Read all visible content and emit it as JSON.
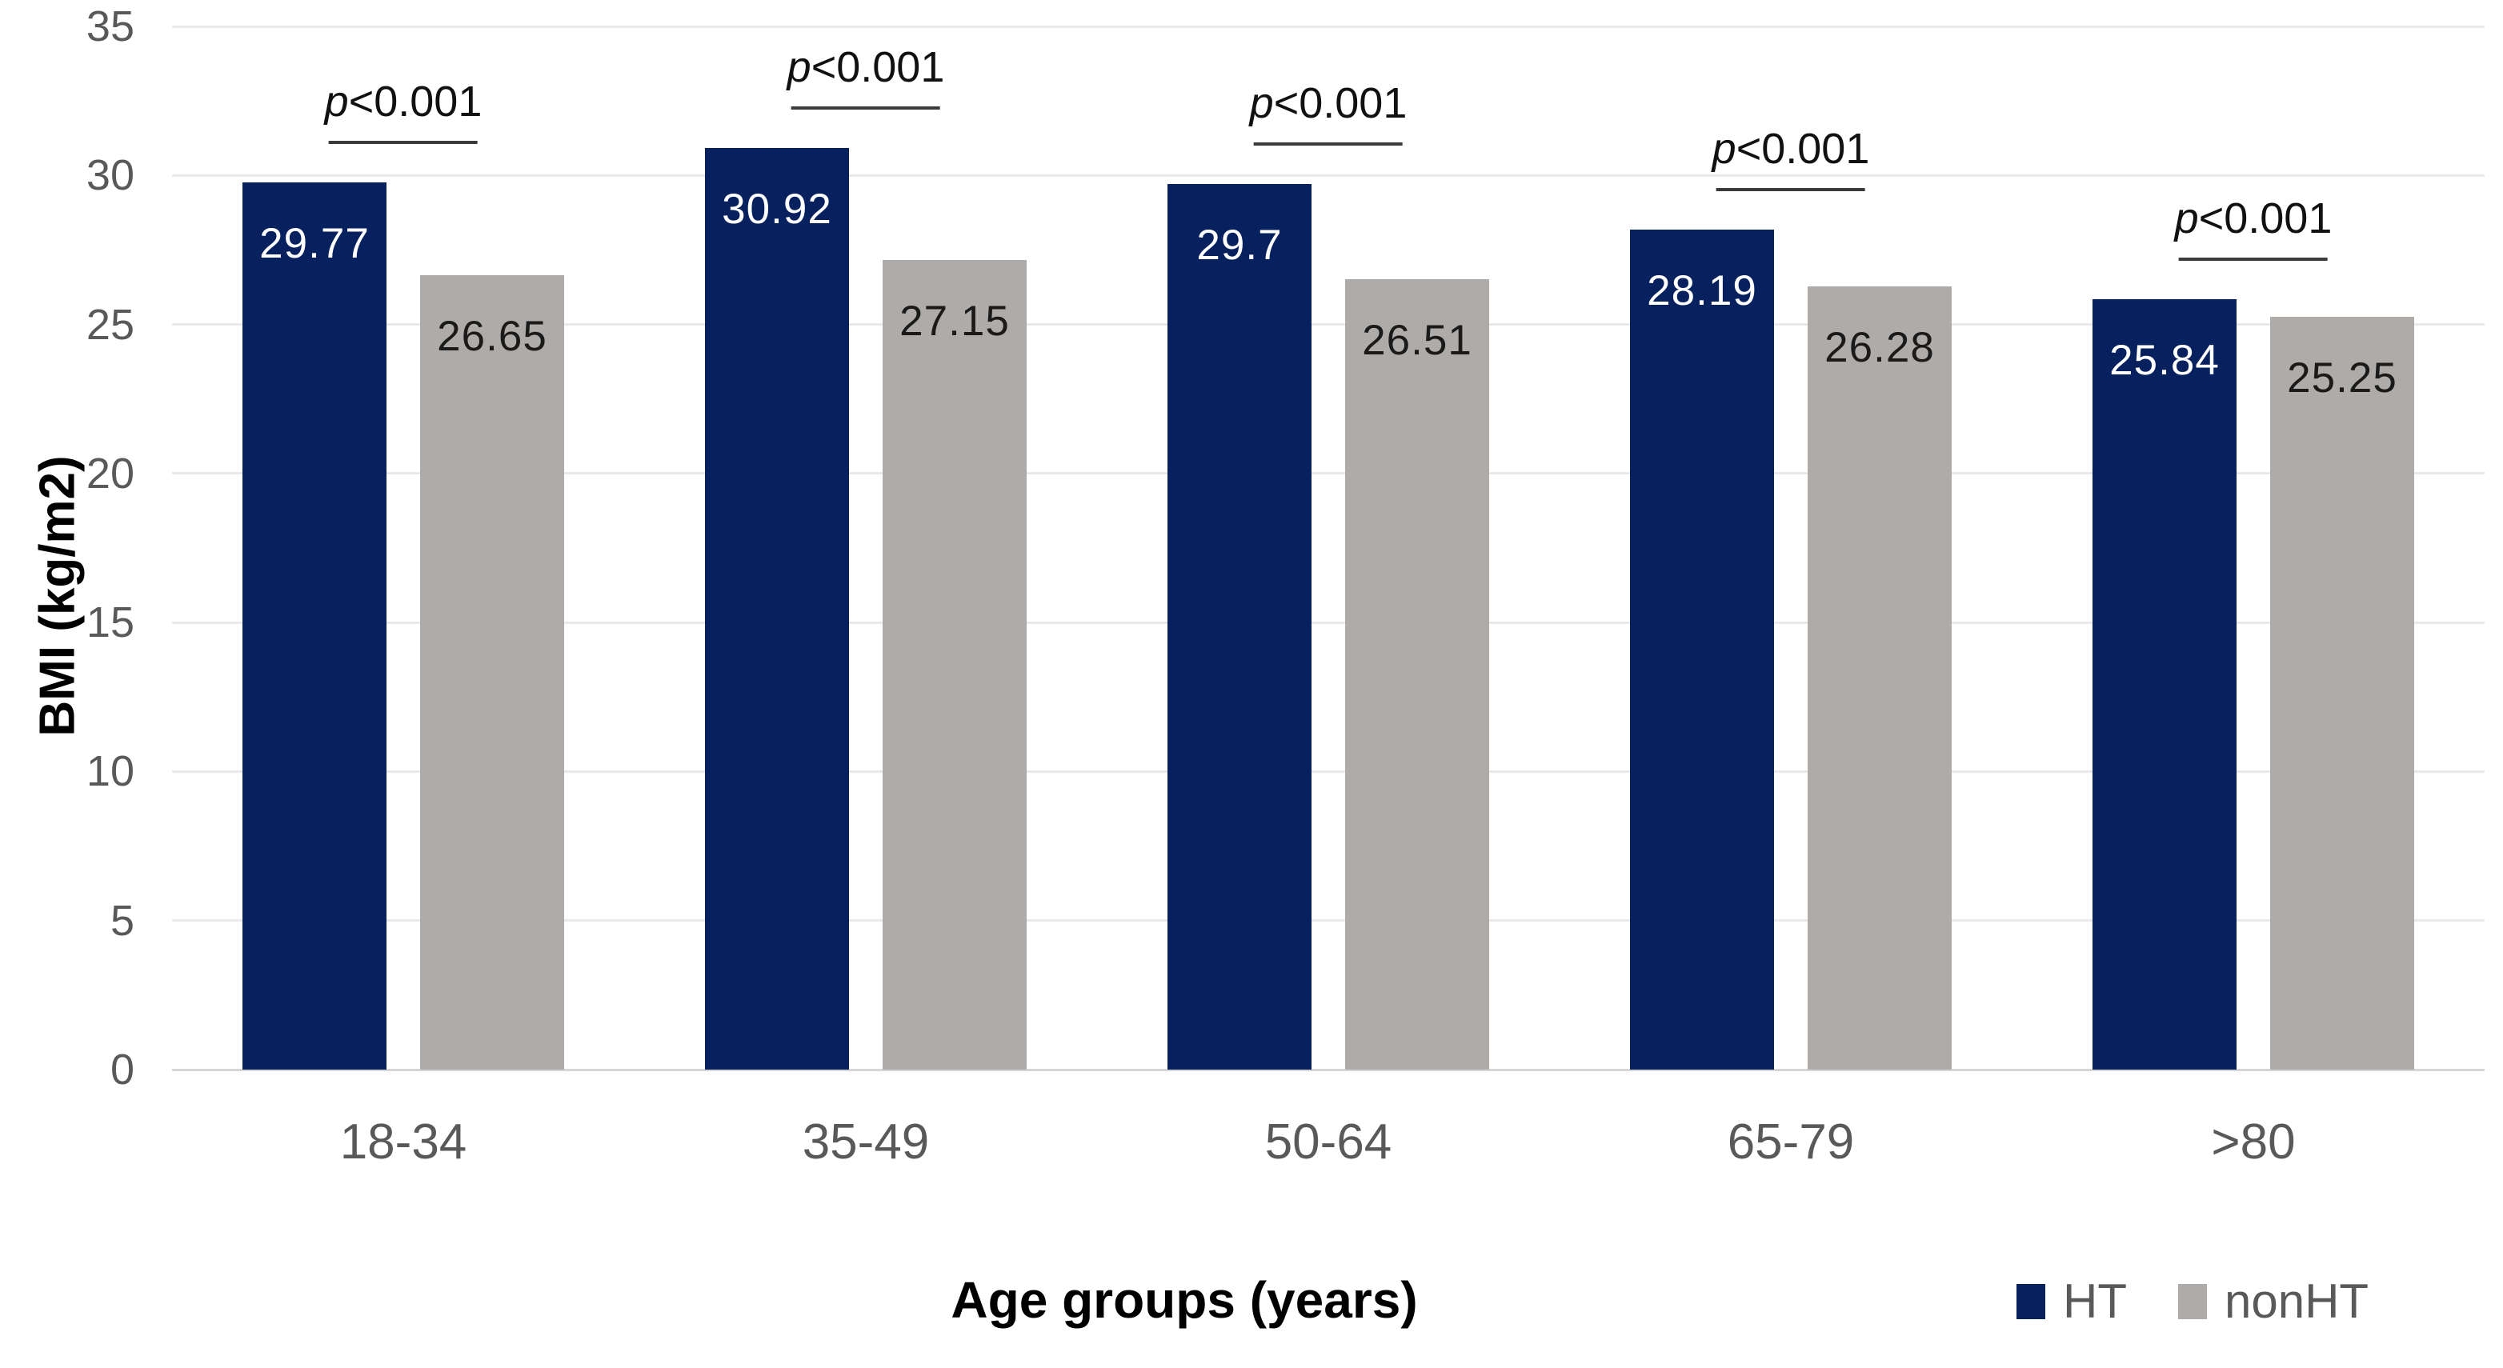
{
  "chart_data": {
    "type": "bar",
    "title": "",
    "xlabel": "Age groups (years)",
    "ylabel": "BMI (kg/m2)",
    "ylim": [
      0,
      35
    ],
    "yticks": [
      0,
      5,
      10,
      15,
      20,
      25,
      30,
      35
    ],
    "grid": true,
    "legend_position": "bottom-right",
    "categories": [
      "18-34",
      "35-49",
      "50-64",
      "65-79",
      ">80"
    ],
    "series": [
      {
        "name": "HT",
        "color": "#07215f",
        "label_color": "#ffffff",
        "values": [
          29.77,
          30.92,
          29.7,
          28.19,
          25.84
        ],
        "value_labels": [
          "29.77",
          "30.92",
          "29.7",
          "28.19",
          "25.84"
        ]
      },
      {
        "name": "nonHT",
        "color": "#aeabа8",
        "color_hex": "#aeaba8",
        "label_color": "#1a1a1a",
        "values": [
          26.65,
          27.15,
          26.51,
          26.28,
          25.25
        ],
        "value_labels": [
          "26.65",
          "27.15",
          "26.51",
          "26.28",
          "25.25"
        ]
      }
    ],
    "annotations": [
      {
        "italic": "p",
        "text": "<0.001"
      },
      {
        "italic": "p",
        "text": "<0.001"
      },
      {
        "italic": "p",
        "text": "<0.001"
      },
      {
        "italic": "p",
        "text": "<0.001"
      },
      {
        "italic": "p",
        "text": "<0.001"
      }
    ]
  },
  "colors": {
    "ht_bar": "#07215f",
    "nonht_bar": "#aeaba8",
    "gridline": "#e9e9e9",
    "baseline": "#d6d6d6",
    "tick_text": "#595959",
    "annotation_line": "#3a3a3a"
  }
}
